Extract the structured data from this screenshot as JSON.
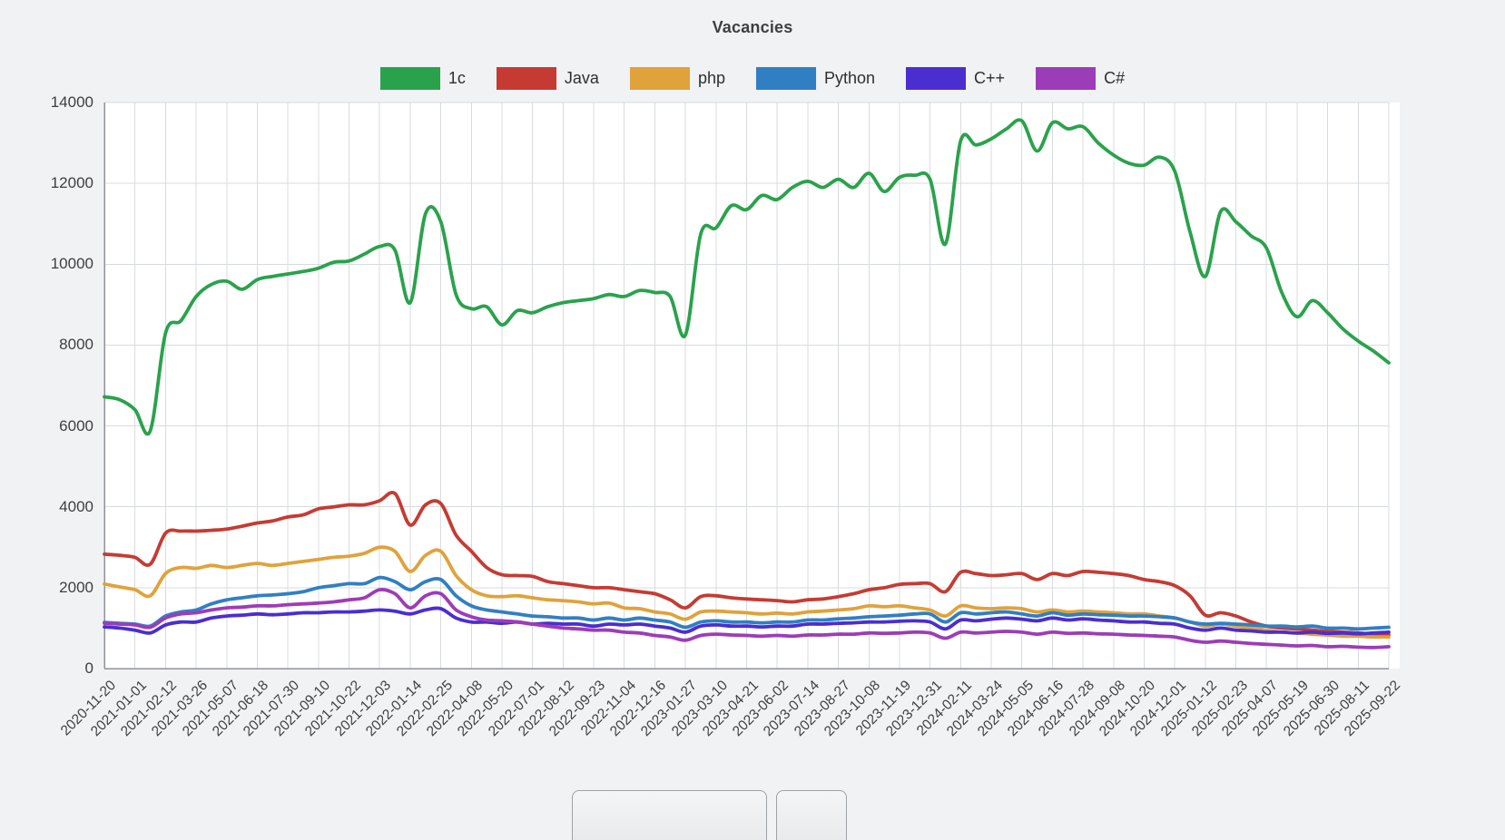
{
  "colors": {
    "page_background": "#f1f2f4",
    "plot_background": "#ffffff",
    "grid": "#d8dbde",
    "axis": "#8f9397"
  },
  "chart_data": {
    "type": "line",
    "title": "Vacancies",
    "xlabel": "",
    "ylabel": "",
    "ylim": [
      0,
      14000
    ],
    "y_ticks": [
      0,
      2000,
      4000,
      6000,
      8000,
      10000,
      12000,
      14000
    ],
    "grid": true,
    "legend_position": "top",
    "x_tick_labels": [
      "2020-11-20",
      "2021-01-01",
      "2021-02-12",
      "2021-03-26",
      "2021-05-07",
      "2021-06-18",
      "2021-07-30",
      "2021-09-10",
      "2021-10-22",
      "2021-12-03",
      "2022-01-14",
      "2022-02-25",
      "2022-04-08",
      "2022-05-20",
      "2022-07-01",
      "2022-08-12",
      "2022-09-23",
      "2022-11-04",
      "2022-12-16",
      "2023-01-27",
      "2023-03-10",
      "2023-04-21",
      "2023-06-02",
      "2023-07-14",
      "2023-08-27",
      "2023-10-08",
      "2023-11-19",
      "2023-12-31",
      "2024-02-11",
      "2024-03-24",
      "2024-05-05",
      "2024-06-16",
      "2024-07-28",
      "2024-09-08",
      "2024-10-20",
      "2024-12-01",
      "2025-01-12",
      "2025-02-23",
      "2025-04-07",
      "2025-05-19",
      "2025-06-30",
      "2025-08-11",
      "2025-09-22"
    ],
    "points_per_label_interval": 2,
    "series": [
      {
        "name": "1c",
        "color": "#2aa24c",
        "values": [
          6720,
          6650,
          6400,
          5880,
          8300,
          8600,
          9200,
          9500,
          9580,
          9380,
          9620,
          9700,
          9760,
          9820,
          9900,
          10050,
          10080,
          10250,
          10440,
          10350,
          9050,
          11250,
          11050,
          9250,
          8900,
          8950,
          8500,
          8850,
          8800,
          8950,
          9050,
          9100,
          9150,
          9250,
          9200,
          9350,
          9300,
          9200,
          8250,
          10750,
          10900,
          11450,
          11350,
          11700,
          11600,
          11900,
          12050,
          11900,
          12100,
          11900,
          12250,
          11800,
          12150,
          12200,
          12100,
          10500,
          13050,
          12950,
          13100,
          13350,
          13550,
          12800,
          13500,
          13350,
          13400,
          13000,
          12700,
          12500,
          12450,
          12650,
          12300,
          10800,
          9700,
          11300,
          11050,
          10700,
          10400,
          9300,
          8700,
          9100,
          8800,
          8400,
          8100,
          7850,
          7560
        ]
      },
      {
        "name": "Java",
        "color": "#c53b33",
        "values": [
          2830,
          2800,
          2750,
          2580,
          3350,
          3400,
          3400,
          3420,
          3450,
          3520,
          3600,
          3650,
          3750,
          3800,
          3950,
          4000,
          4050,
          4050,
          4150,
          4330,
          3550,
          4050,
          4080,
          3300,
          2900,
          2500,
          2320,
          2300,
          2280,
          2150,
          2100,
          2050,
          2000,
          2000,
          1950,
          1900,
          1850,
          1700,
          1500,
          1780,
          1800,
          1750,
          1720,
          1700,
          1680,
          1650,
          1700,
          1720,
          1780,
          1850,
          1950,
          2000,
          2080,
          2100,
          2100,
          1900,
          2380,
          2350,
          2300,
          2320,
          2350,
          2200,
          2350,
          2300,
          2400,
          2380,
          2350,
          2300,
          2200,
          2150,
          2050,
          1800,
          1320,
          1380,
          1300,
          1150,
          1050,
          1000,
          980,
          950,
          920,
          900,
          880,
          850,
          830
        ]
      },
      {
        "name": "php",
        "color": "#e0a23b",
        "values": [
          2090,
          2020,
          1950,
          1800,
          2350,
          2500,
          2480,
          2550,
          2500,
          2550,
          2600,
          2550,
          2600,
          2650,
          2700,
          2750,
          2780,
          2850,
          3000,
          2900,
          2400,
          2800,
          2900,
          2300,
          1950,
          1800,
          1780,
          1800,
          1750,
          1700,
          1680,
          1650,
          1600,
          1620,
          1500,
          1480,
          1400,
          1350,
          1220,
          1400,
          1420,
          1400,
          1380,
          1350,
          1370,
          1350,
          1400,
          1420,
          1450,
          1480,
          1550,
          1530,
          1550,
          1500,
          1450,
          1300,
          1550,
          1500,
          1480,
          1500,
          1480,
          1400,
          1450,
          1400,
          1420,
          1400,
          1380,
          1350,
          1350,
          1300,
          1250,
          1150,
          1050,
          1100,
          1050,
          1000,
          950,
          900,
          880,
          850,
          830,
          800,
          800,
          780,
          780
        ]
      },
      {
        "name": "Python",
        "color": "#307fc3",
        "values": [
          1140,
          1120,
          1100,
          1050,
          1300,
          1400,
          1450,
          1600,
          1700,
          1750,
          1800,
          1820,
          1850,
          1900,
          2000,
          2050,
          2100,
          2100,
          2250,
          2150,
          1950,
          2150,
          2200,
          1800,
          1550,
          1450,
          1400,
          1350,
          1300,
          1280,
          1250,
          1250,
          1200,
          1250,
          1200,
          1250,
          1200,
          1150,
          1020,
          1150,
          1180,
          1150,
          1150,
          1130,
          1150,
          1150,
          1200,
          1200,
          1230,
          1250,
          1280,
          1300,
          1320,
          1350,
          1350,
          1150,
          1380,
          1350,
          1380,
          1400,
          1350,
          1300,
          1380,
          1320,
          1350,
          1330,
          1320,
          1300,
          1300,
          1280,
          1250,
          1150,
          1100,
          1120,
          1100,
          1080,
          1050,
          1050,
          1030,
          1050,
          1000,
          1000,
          980,
          1000,
          1020
        ]
      },
      {
        "name": "C++",
        "color": "#4b2ed0",
        "values": [
          1030,
          1000,
          950,
          880,
          1080,
          1150,
          1150,
          1250,
          1300,
          1320,
          1350,
          1330,
          1350,
          1380,
          1380,
          1400,
          1400,
          1420,
          1450,
          1420,
          1350,
          1450,
          1480,
          1250,
          1150,
          1150,
          1120,
          1150,
          1100,
          1120,
          1100,
          1100,
          1050,
          1100,
          1080,
          1100,
          1050,
          1000,
          900,
          1050,
          1080,
          1050,
          1050,
          1030,
          1050,
          1050,
          1100,
          1100,
          1120,
          1130,
          1150,
          1150,
          1170,
          1180,
          1150,
          980,
          1200,
          1180,
          1220,
          1250,
          1220,
          1180,
          1250,
          1200,
          1230,
          1200,
          1180,
          1150,
          1150,
          1120,
          1100,
          1000,
          950,
          1000,
          950,
          930,
          900,
          900,
          880,
          900,
          870,
          880,
          860,
          880,
          900
        ]
      },
      {
        "name": "C#",
        "color": "#9d3cb8",
        "values": [
          1120,
          1100,
          1080,
          1020,
          1250,
          1350,
          1380,
          1450,
          1500,
          1520,
          1550,
          1550,
          1580,
          1600,
          1620,
          1650,
          1700,
          1750,
          1950,
          1850,
          1500,
          1800,
          1850,
          1450,
          1280,
          1200,
          1180,
          1150,
          1100,
          1050,
          1000,
          980,
          950,
          950,
          900,
          880,
          820,
          780,
          700,
          820,
          850,
          830,
          820,
          800,
          820,
          800,
          830,
          830,
          850,
          850,
          880,
          870,
          880,
          900,
          880,
          750,
          900,
          880,
          900,
          920,
          900,
          850,
          900,
          870,
          880,
          860,
          850,
          830,
          820,
          800,
          780,
          700,
          650,
          680,
          650,
          620,
          600,
          580,
          560,
          570,
          540,
          550,
          530,
          520,
          540
        ]
      }
    ]
  },
  "footer": {
    "left_button_label": "",
    "right_button_label": ""
  }
}
